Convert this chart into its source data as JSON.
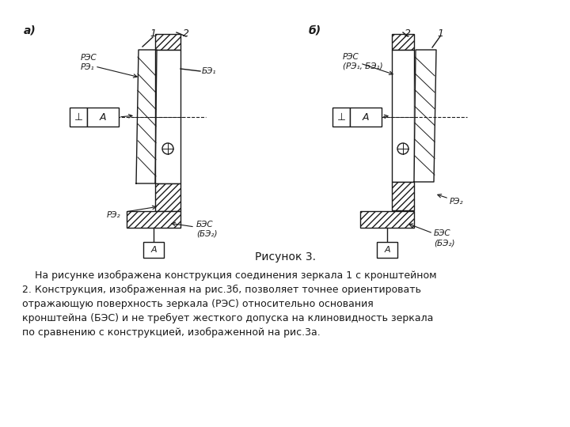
{
  "bg_color": "#ffffff",
  "line_color": "#1a1a1a",
  "fig_title": "Рисунок 3.",
  "caption_line1": "    На рисунке изображена конструкция соединения зеркала 1 с кронштейном",
  "caption_line2": "2. Конструкция, изображенная на рис.3б, позволяет точнее ориентировать",
  "caption_line3": "отражающую поверхность зеркала (РЭС) относительно основания",
  "caption_line4": "кронштейна (БЭС) и не требует жесткого допуска на клиновидность зеркала",
  "caption_line5": "по сравнению с конструкцией, изображенной на рис.3а."
}
